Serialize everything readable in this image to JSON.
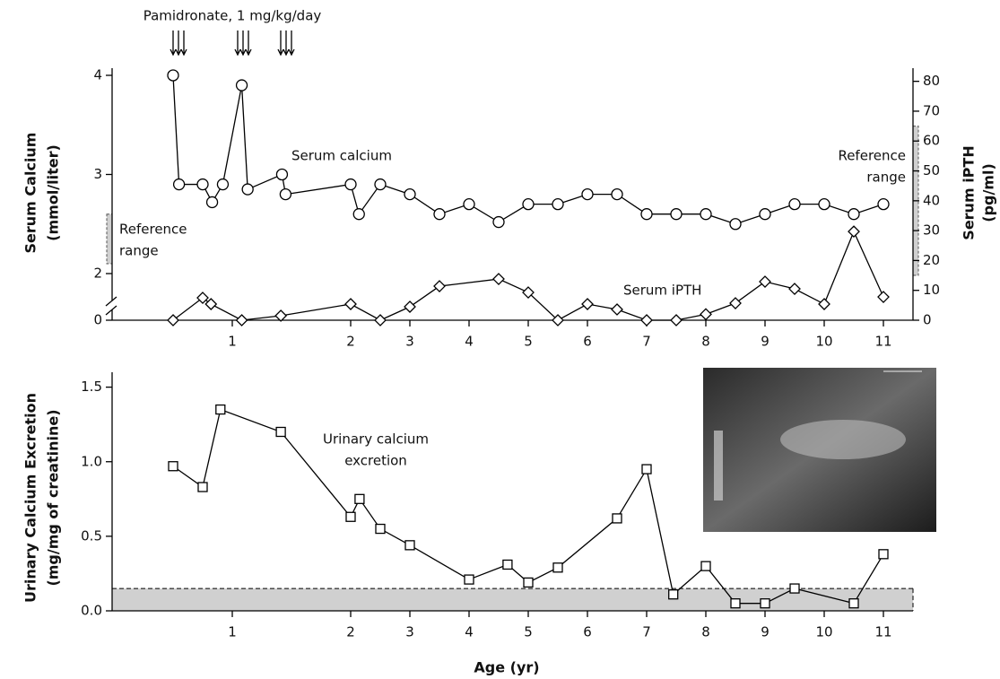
{
  "chart_data": [
    {
      "type": "line",
      "annotation": "Pamidronate, 1 mg/kg/day",
      "y_label": [
        "Serum Calcium",
        "(mmol/liter)"
      ],
      "y2_label": [
        "Serum iPTH",
        "(pg/ml)"
      ],
      "xlim": [
        0,
        11.5
      ],
      "xticks": [
        1,
        2,
        3,
        4,
        5,
        6,
        7,
        8,
        9,
        10,
        11
      ],
      "ylim": [
        0,
        4
      ],
      "yticks": [
        0,
        2,
        3,
        4
      ],
      "y_axis_break": true,
      "y2lim": [
        0,
        82
      ],
      "y2ticks": [
        0,
        10,
        20,
        30,
        40,
        50,
        60,
        70,
        80
      ],
      "reference_range_y": [
        2.1,
        2.6
      ],
      "reference_label_left": [
        "Reference",
        "range"
      ],
      "reference_range_y2": [
        15,
        65
      ],
      "reference_label_right": [
        "Reference",
        "range"
      ],
      "series": [
        {
          "name": "Serum calcium",
          "color": "#000000",
          "marker": "circle",
          "x": [
            0.5,
            0.55,
            0.75,
            0.83,
            0.92,
            1.08,
            1.13,
            1.42,
            1.45,
            2,
            2.14,
            2.5,
            3,
            3.5,
            4,
            4.5,
            5,
            5.5,
            6,
            6.5,
            7,
            7.5,
            8,
            8.5,
            9,
            9.5,
            10,
            10.5,
            11
          ],
          "values": [
            4.0,
            2.9,
            2.9,
            2.72,
            2.9,
            3.9,
            2.85,
            3.0,
            2.8,
            2.9,
            2.6,
            2.9,
            2.8,
            2.6,
            2.7,
            2.52,
            2.7,
            2.7,
            2.8,
            2.8,
            2.6,
            2.6,
            2.6,
            2.5,
            2.6,
            2.7,
            2.7,
            2.6,
            2.7
          ]
        },
        {
          "name": "Serum iPTH",
          "color": "#000000",
          "marker": "diamond",
          "axis": "y2",
          "x": [
            0.5,
            0.75,
            0.82,
            1.08,
            1.41,
            2,
            2.5,
            3,
            3.5,
            4.5,
            5,
            5.5,
            6,
            6.5,
            7,
            7.5,
            8,
            8.5,
            9,
            9.5,
            10,
            10.5,
            11
          ],
          "values": [
            0,
            7.5,
            5.4,
            0,
            1.5,
            5.4,
            0,
            4.5,
            11.4,
            13.8,
            9.3,
            0,
            5.4,
            3.6,
            0,
            0,
            2,
            5.7,
            12.9,
            10.5,
            5.4,
            29.7,
            7.8
          ]
        }
      ]
    },
    {
      "type": "line",
      "x_label": "Age (yr)",
      "y_label": [
        "Urinary Calcium Excretion",
        "(mg/mg of creatinine)"
      ],
      "xlim": [
        0,
        11.5
      ],
      "xticks": [
        1,
        2,
        3,
        4,
        5,
        6,
        7,
        8,
        9,
        10,
        11
      ],
      "ylim": [
        0,
        1.6
      ],
      "yticks": [
        {
          "value": 0,
          "label": "0.0"
        },
        {
          "value": 0.5,
          "label": "0.5"
        },
        {
          "value": 1,
          "label": "1.0"
        },
        {
          "value": 1.5,
          "label": "1.5"
        }
      ],
      "reference_range_y": [
        0,
        0.15
      ],
      "series": [
        {
          "name": [
            "Urinary calcium",
            "excretion"
          ],
          "color": "#000000",
          "marker": "square",
          "x": [
            0.5,
            0.75,
            0.9,
            1.41,
            2,
            2.15,
            2.5,
            3,
            4,
            4.65,
            5,
            5.5,
            6.5,
            7,
            7.45,
            8,
            8.5,
            9,
            9.5,
            10.5,
            11
          ],
          "values": [
            0.97,
            0.83,
            1.35,
            1.2,
            0.63,
            0.75,
            0.55,
            0.44,
            0.21,
            0.31,
            0.19,
            0.29,
            0.62,
            0.95,
            0.11,
            0.3,
            0.05,
            0.05,
            0.15,
            0.05,
            0.38
          ]
        }
      ]
    }
  ]
}
